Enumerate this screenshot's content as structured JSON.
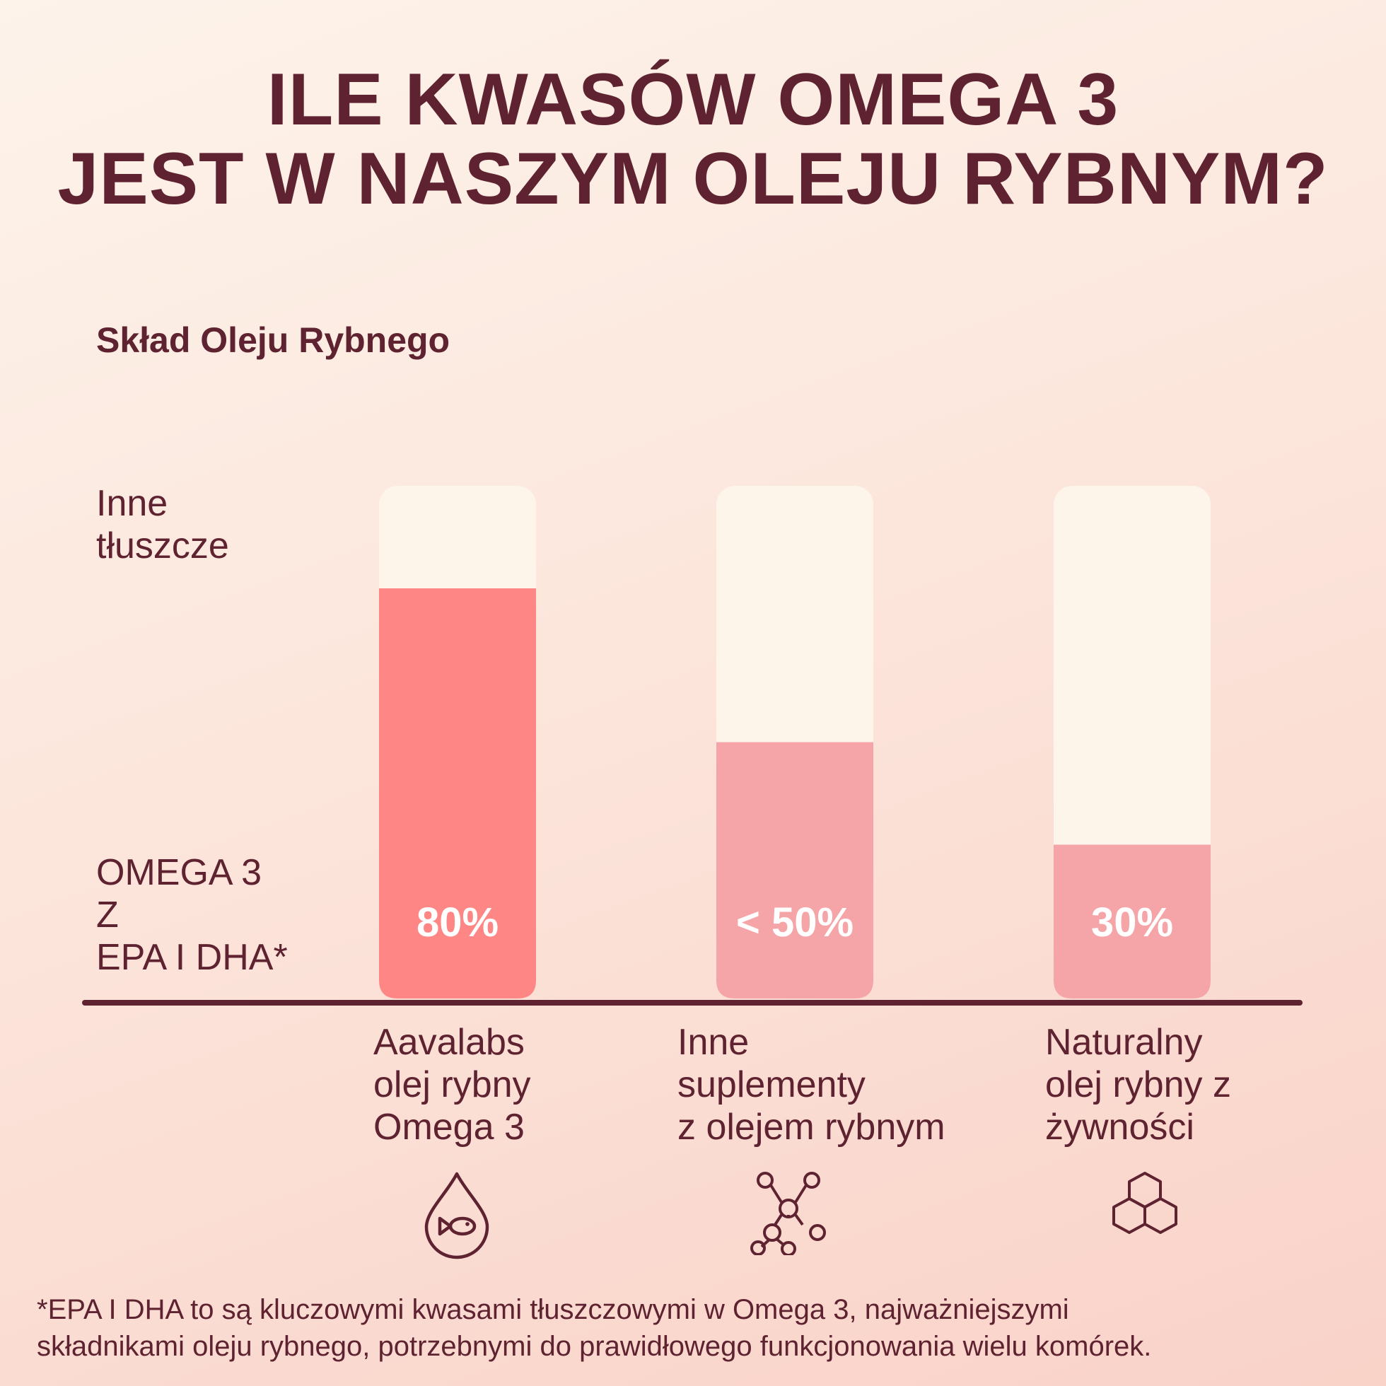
{
  "chart_data": {
    "type": "bar",
    "title": "ILE KWASÓW OMEGA 3\nJEST W NASZYM OLEJU RYBNYM?",
    "subtitle": "Skład Oleju Rybnego",
    "series": [
      {
        "name": "OMEGA 3\nZ\nEPA I DHA*",
        "values": [
          80,
          50,
          30
        ]
      },
      {
        "name": "Inne\ntłuszcze",
        "values": [
          20,
          50,
          70
        ]
      }
    ],
    "categories": [
      "Aavalabs\nolej rybny\nOmega 3",
      "Inne\nsuplementy\nz olejem rybnym",
      "Naturalny\nolej rybny z\nżywności"
    ],
    "data_labels": [
      "80%",
      "< 50%",
      "30%"
    ],
    "ylim": [
      0,
      100
    ],
    "stacked": true,
    "grid": false,
    "legend": "left, as row labels",
    "colors": {
      "highlight": "#fe8684",
      "omega": "#f5a4a8",
      "other": "#fdf4ea",
      "axis": "#5e2230",
      "label_text": "#ffffff"
    }
  },
  "icons": [
    "fish-drop-icon",
    "molecule-icon",
    "honeycomb-icon"
  ],
  "footnote": "*EPA I DHA to są kluczowymi kwasami tłuszczowymi w Omega 3, najważniejszymi\nskładnikami oleju rybnego, potrzebnymi do prawidłowego funkcjonowania wielu komórek."
}
